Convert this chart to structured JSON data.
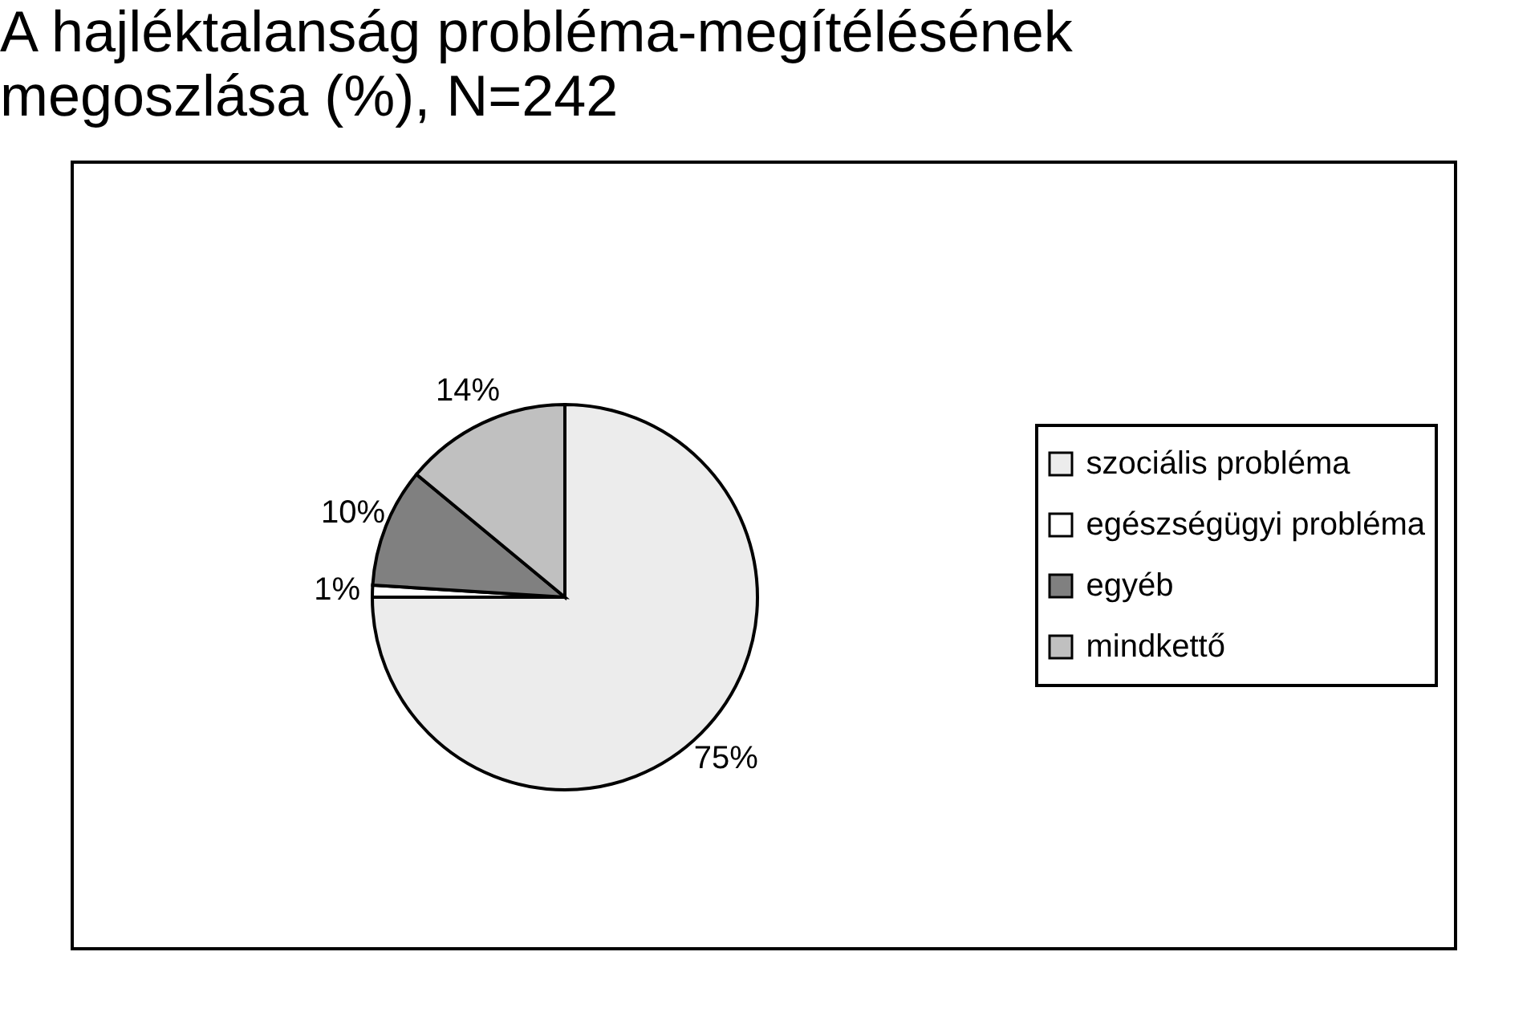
{
  "chart_data": {
    "type": "pie",
    "title": "A hajléktalanság probléma-megítélésének megoszlása (%), N=242",
    "categories": [
      "szociális probléma",
      "egészségügyi probléma",
      "egyéb",
      "mindkettő"
    ],
    "values": [
      75,
      1,
      10,
      14
    ],
    "value_labels": [
      "75%",
      "1%",
      "10%",
      "14%"
    ],
    "colors": [
      "#ececec",
      "#ffffff",
      "#808080",
      "#c0c0c0"
    ],
    "legend": "right"
  }
}
